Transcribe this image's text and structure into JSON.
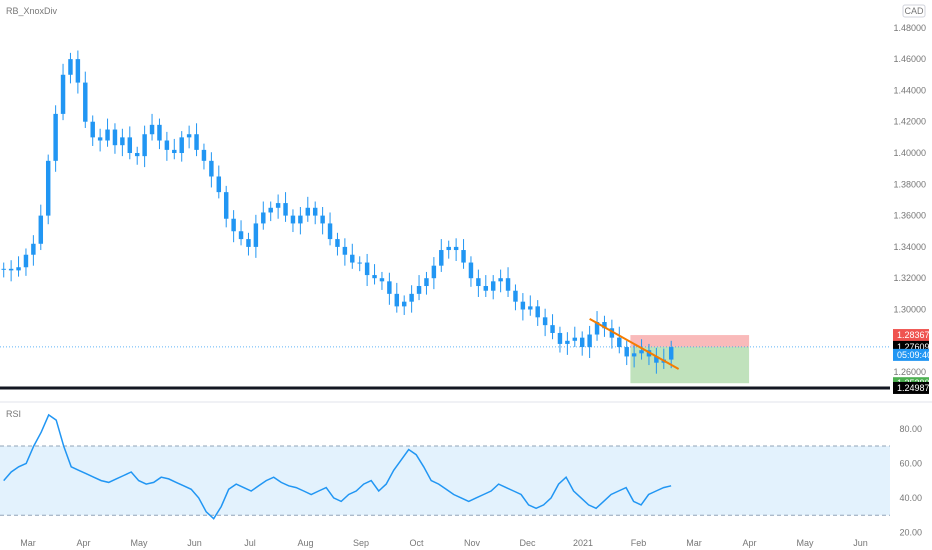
{
  "chart_title": "RB_XnoxDiv",
  "currency": "CAD",
  "colors": {
    "candle": "#2196f3",
    "trendline": "#f57c00",
    "support": "#131722",
    "stop_zone": "#f8b3b3",
    "target_zone": "#b9dfb5",
    "rsi_line": "#2196f3",
    "rsi_band": "#e3f2fd",
    "badge_red": "#ef5350",
    "badge_black": "#000000",
    "badge_blue": "#2196f3",
    "badge_green": "#4caf50"
  },
  "price_badges": [
    {
      "label": "1.28367",
      "color_key": "badge_red",
      "price": 1.28367
    },
    {
      "label": "1.27609",
      "color_key": "badge_black",
      "price": 1.27609
    },
    {
      "label": "05:09:40",
      "color_key": "badge_blue",
      "price": 1.271
    },
    {
      "label": "1.25290",
      "color_key": "badge_green",
      "price": 1.2529
    },
    {
      "label": "1.24987",
      "color_key": "badge_black",
      "price": 1.24987
    }
  ],
  "chart_data": [
    {
      "type": "candlestick",
      "title": "RB_XnoxDiv",
      "unit": "CAD",
      "x_tick_labels": [
        "Mar",
        "Apr",
        "May",
        "Jun",
        "Jul",
        "Aug",
        "Sep",
        "Oct",
        "Nov",
        "Dec",
        "2021",
        "Feb",
        "Mar",
        "Apr",
        "May",
        "Jun"
      ],
      "y_tick_labels": [
        "1.48000",
        "1.46000",
        "1.44000",
        "1.42000",
        "1.40000",
        "1.38000",
        "1.36000",
        "1.34000",
        "1.32000",
        "1.30000",
        "1.26000"
      ],
      "ylim": [
        1.246,
        1.485
      ],
      "close_series": [
        1.326,
        1.325,
        1.327,
        1.335,
        1.342,
        1.36,
        1.395,
        1.425,
        1.45,
        1.46,
        1.445,
        1.42,
        1.41,
        1.408,
        1.415,
        1.405,
        1.41,
        1.4,
        1.398,
        1.412,
        1.418,
        1.408,
        1.402,
        1.4,
        1.41,
        1.412,
        1.402,
        1.395,
        1.385,
        1.375,
        1.358,
        1.35,
        1.345,
        1.34,
        1.355,
        1.362,
        1.365,
        1.368,
        1.36,
        1.355,
        1.36,
        1.365,
        1.36,
        1.355,
        1.345,
        1.34,
        1.335,
        1.33,
        1.33,
        1.322,
        1.32,
        1.318,
        1.31,
        1.302,
        1.305,
        1.31,
        1.315,
        1.32,
        1.328,
        1.338,
        1.34,
        1.338,
        1.33,
        1.32,
        1.315,
        1.312,
        1.318,
        1.32,
        1.312,
        1.305,
        1.3,
        1.302,
        1.295,
        1.29,
        1.285,
        1.278,
        1.28,
        1.282,
        1.276,
        1.284,
        1.292,
        1.288,
        1.282,
        1.276,
        1.27,
        1.272,
        1.274,
        1.27,
        1.266,
        1.268,
        1.276
      ],
      "trendline": {
        "from": {
          "index": 79,
          "price": 1.294
        },
        "to": {
          "index": 91,
          "price": 1.262
        }
      },
      "horizontal_lines": [
        {
          "price": 1.24987,
          "style": "solid"
        },
        {
          "price": 1.27609,
          "style": "dotted"
        }
      ],
      "zones": [
        {
          "kind": "stop",
          "price_top": 1.28367,
          "price_bottom": 1.27609,
          "from_index": 85,
          "to_index": 100
        },
        {
          "kind": "target",
          "price_top": 1.27609,
          "price_bottom": 1.2529,
          "from_index": 85,
          "to_index": 100
        }
      ],
      "total_slots": 120
    },
    {
      "type": "line",
      "title": "RSI",
      "y_tick_labels": [
        "80.00",
        "60.00",
        "40.00",
        "20.00"
      ],
      "ylim": [
        18,
        92
      ],
      "band": [
        30,
        70
      ],
      "values": [
        50,
        55,
        58,
        60,
        70,
        78,
        88,
        85,
        70,
        58,
        56,
        54,
        52,
        50,
        49,
        51,
        53,
        55,
        50,
        48,
        49,
        52,
        51,
        49,
        47,
        45,
        40,
        32,
        28,
        35,
        45,
        48,
        46,
        44,
        47,
        50,
        52,
        49,
        47,
        46,
        44,
        42,
        44,
        46,
        40,
        38,
        42,
        44,
        48,
        50,
        44,
        48,
        56,
        62,
        68,
        65,
        58,
        50,
        48,
        45,
        42,
        40,
        38,
        40,
        42,
        44,
        48,
        46,
        44,
        42,
        36,
        34,
        36,
        40,
        48,
        52,
        44,
        40,
        36,
        34,
        38,
        42,
        44,
        46,
        38,
        36,
        42,
        44,
        46,
        47
      ]
    }
  ]
}
